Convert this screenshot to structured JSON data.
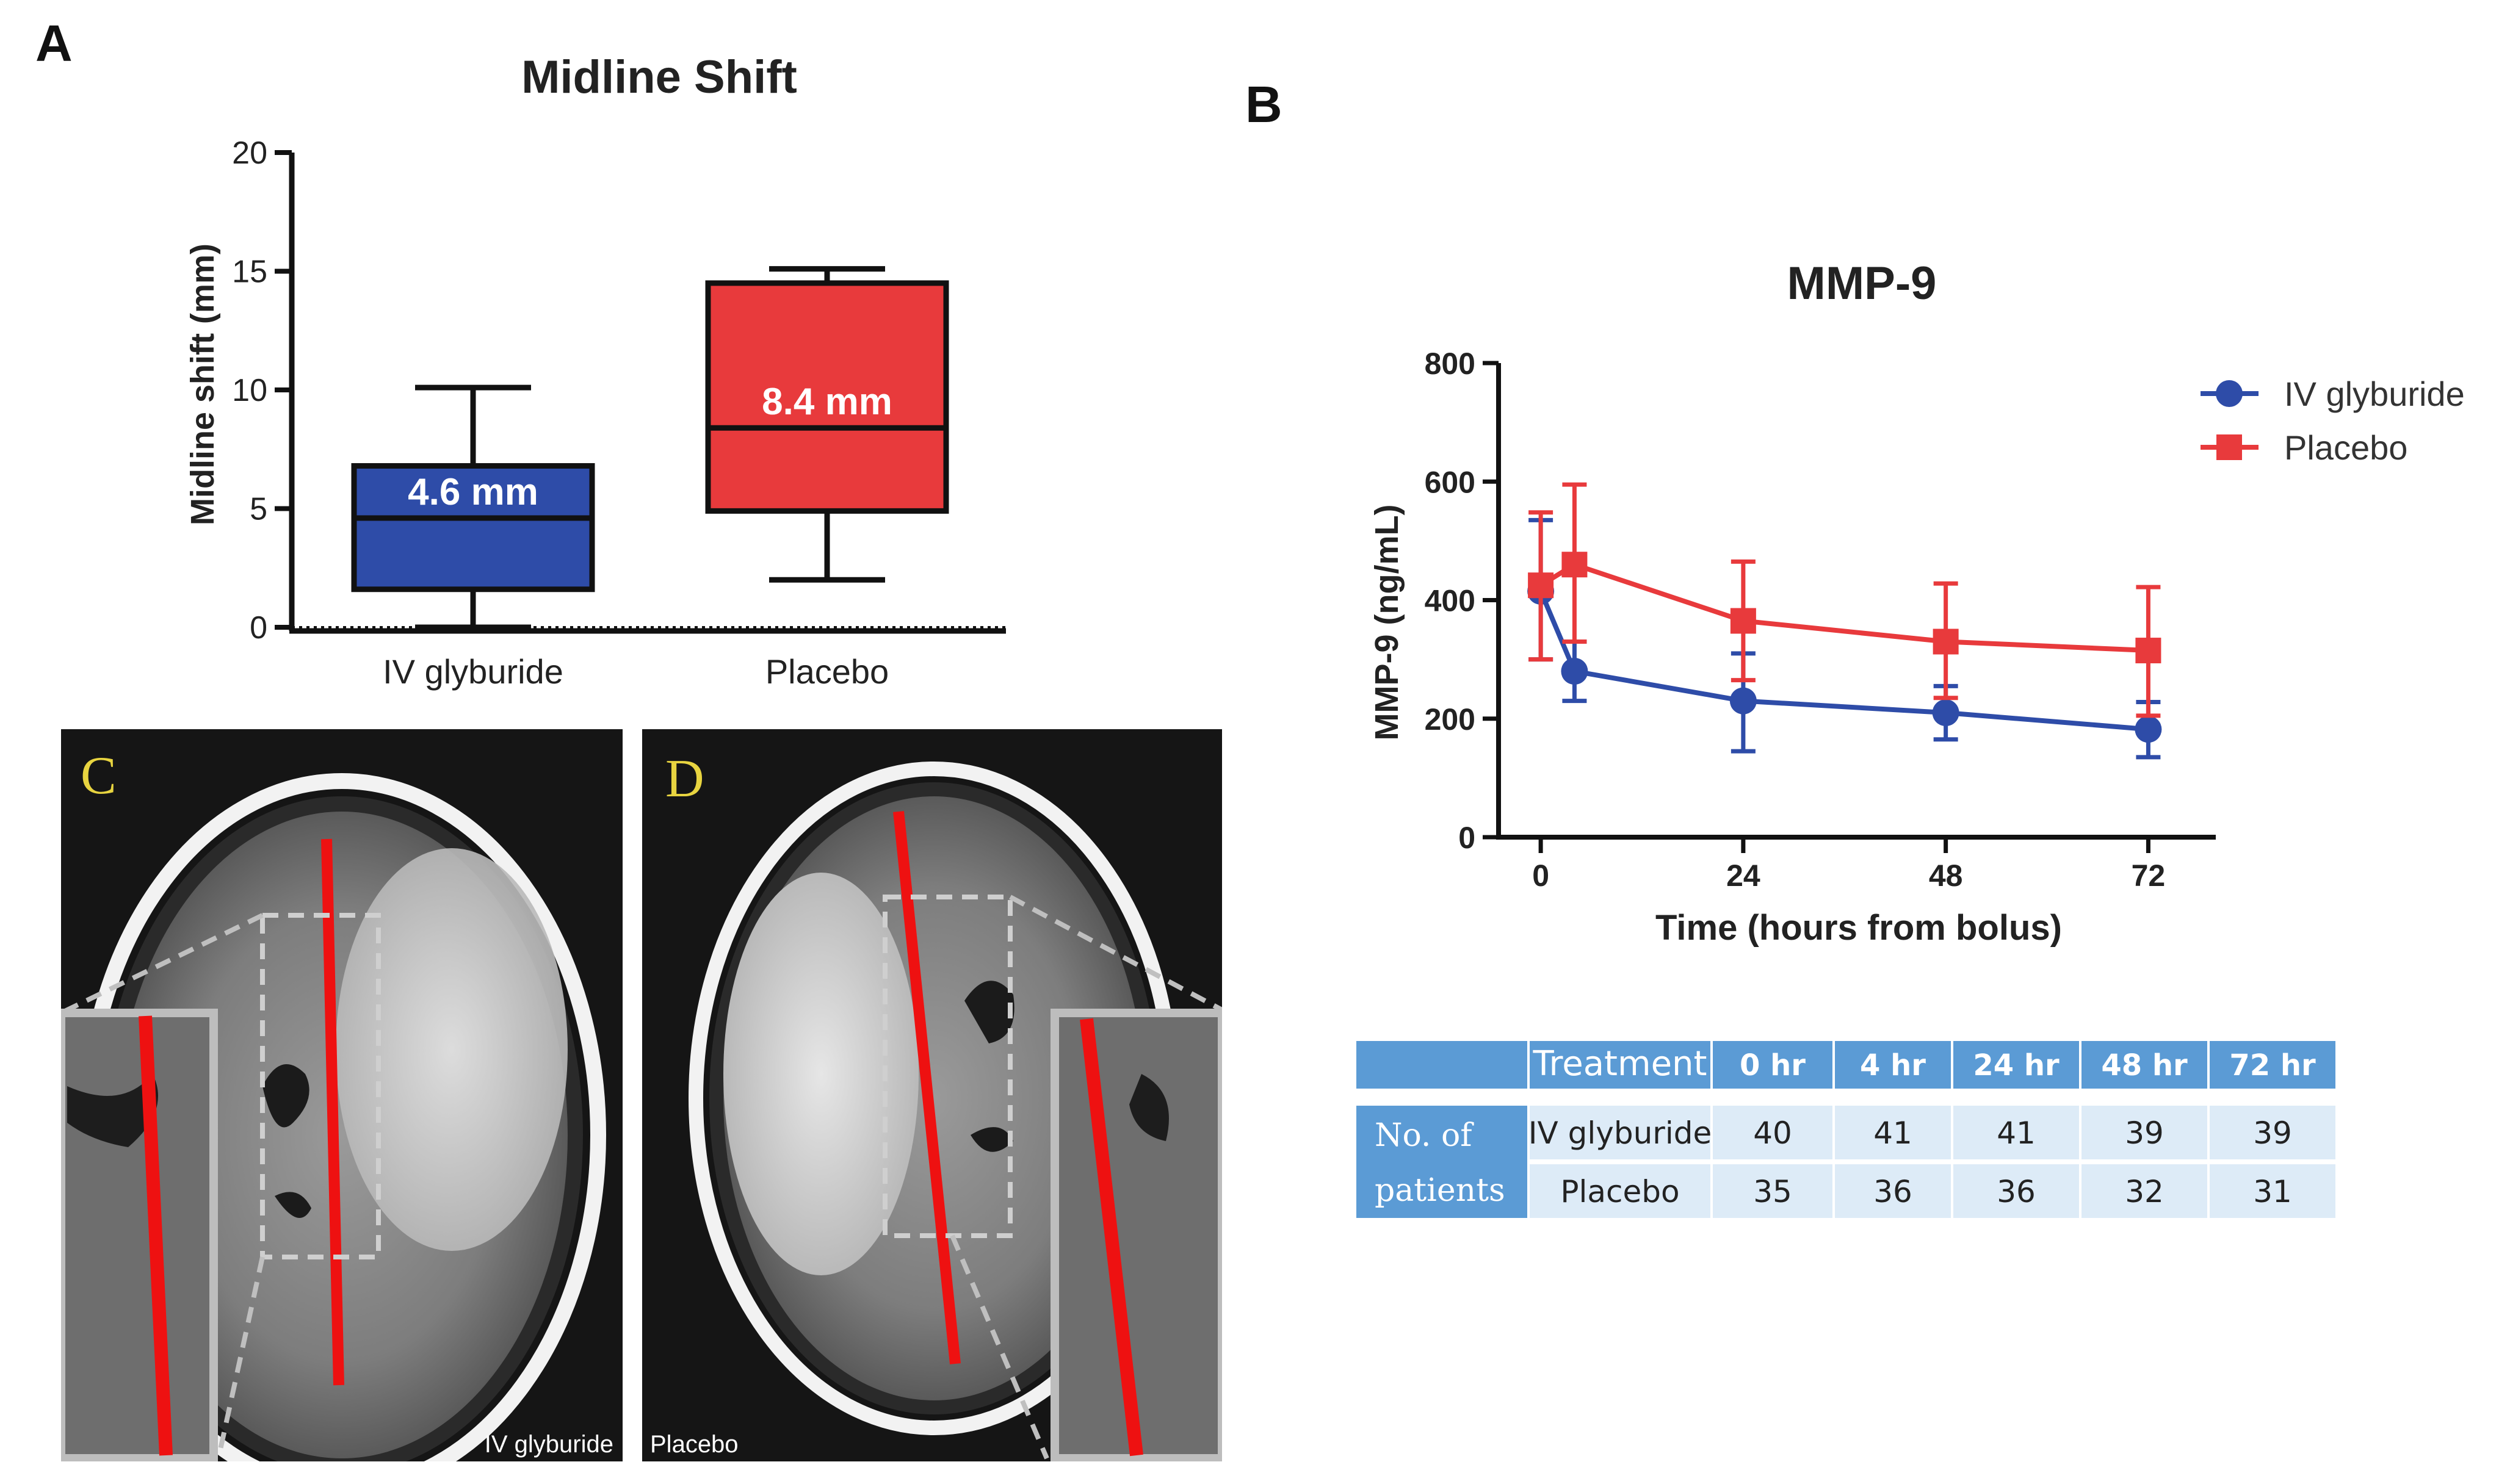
{
  "panel_labels": {
    "a": "A",
    "b": "B",
    "c": "C",
    "d": "D"
  },
  "colors": {
    "blue": "#2E4CA8",
    "red": "#E83A3C",
    "table_dark": "#5B9BD5",
    "table_light": "#DDEBF7",
    "black": "#111111"
  },
  "chart_data": [
    {
      "type": "box",
      "title": "Midline Shift",
      "ylabel": "Midline shift (mm)",
      "xlabel": "",
      "ylim": [
        0,
        20
      ],
      "yticks": [
        0,
        5,
        10,
        15,
        20
      ],
      "reference_line": 0,
      "categories": [
        "IV glyburide",
        "Placebo"
      ],
      "boxes": [
        {
          "name": "IV glyburide",
          "min": 0,
          "q1": 1.6,
          "median": 4.6,
          "q3": 6.8,
          "max": 10.1,
          "label": "4.6 mm",
          "color": "#2E4CA8"
        },
        {
          "name": "Placebo",
          "min": 2.0,
          "q1": 4.9,
          "median": 8.4,
          "q3": 14.5,
          "max": 15.1,
          "label": "8.4 mm",
          "color": "#E83A3C"
        }
      ]
    },
    {
      "type": "line",
      "title": "MMP-9",
      "xlabel": "Time (hours from bolus)",
      "ylabel": "MMP-9 (ng/mL)",
      "xlim": [
        -5,
        80
      ],
      "ylim": [
        0,
        800
      ],
      "xticks": [
        0,
        24,
        48,
        72
      ],
      "yticks": [
        0,
        200,
        400,
        600,
        800
      ],
      "series": [
        {
          "name": "IV glyburide",
          "color": "#2E4CA8",
          "marker": "circle",
          "x": [
            0,
            4,
            24,
            48,
            72
          ],
          "y": [
            415,
            280,
            230,
            210,
            182
          ],
          "err_low": [
            300,
            230,
            145,
            165,
            135
          ],
          "err_high": [
            535,
            330,
            310,
            255,
            228
          ]
        },
        {
          "name": "Placebo",
          "color": "#E83A3C",
          "marker": "square",
          "x": [
            0,
            4,
            24,
            48,
            72
          ],
          "y": [
            425,
            460,
            365,
            330,
            315
          ],
          "err_low": [
            300,
            330,
            265,
            235,
            205
          ],
          "err_high": [
            548,
            595,
            465,
            428,
            422
          ]
        }
      ]
    },
    {
      "type": "table",
      "headers": [
        "",
        "Treatment",
        "0 hr",
        "4 hr",
        "24 hr",
        "48 hr",
        "72 hr"
      ],
      "row_group": [
        "No. of",
        "patients"
      ],
      "rows": [
        {
          "treatment": "IV glyburide",
          "values": [
            "40",
            "41",
            "41",
            "39",
            "39"
          ]
        },
        {
          "treatment": "Placebo",
          "values": [
            "35",
            "36",
            "36",
            "32",
            "31"
          ]
        }
      ]
    }
  ],
  "images": {
    "c_caption": "IV glyburide",
    "d_caption": "Placebo"
  }
}
